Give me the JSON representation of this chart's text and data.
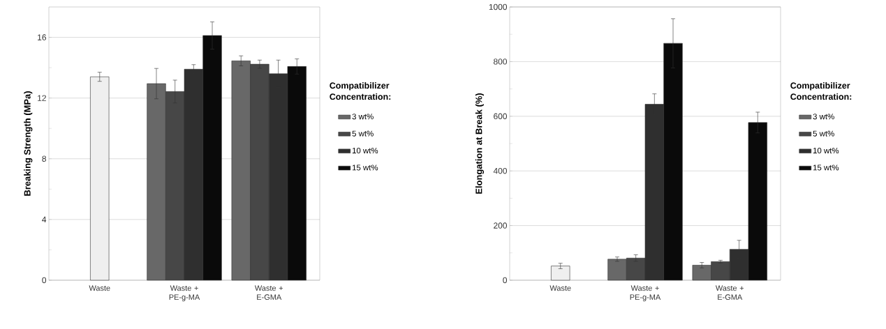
{
  "chart_data": [
    {
      "type": "bar",
      "ylabel": "Breaking Strength (MPa)",
      "legend_title": "Compatibilizer Concentration:",
      "categories": [
        "Waste",
        "Waste + PE-g-MA",
        "Waste + E-GMA"
      ],
      "series": [
        {
          "color": "#efefef",
          "values": [
            13.4,
            null,
            null
          ],
          "errors": [
            0.3,
            null,
            null
          ]
        },
        {
          "name": "3 wt%",
          "color": "#686868",
          "values": [
            null,
            12.95,
            14.45
          ],
          "errors": [
            null,
            1.0,
            0.33
          ]
        },
        {
          "name": "5 wt%",
          "color": "#474747",
          "values": [
            null,
            12.43,
            14.23
          ],
          "errors": [
            null,
            0.75,
            0.27
          ]
        },
        {
          "name": "10 wt%",
          "color": "#2f2f2f",
          "values": [
            null,
            13.9,
            13.6
          ],
          "errors": [
            null,
            0.3,
            0.9
          ]
        },
        {
          "name": "15 wt%",
          "color": "#0a0a0a",
          "values": [
            null,
            16.12,
            14.08
          ],
          "errors": [
            null,
            0.9,
            0.5
          ]
        }
      ],
      "ylim": [
        0,
        18
      ],
      "yticks": [
        0,
        {
          "value": 2,
          "label": null
        },
        4,
        {
          "value": 6,
          "label": null
        },
        8,
        {
          "value": 10,
          "label": null
        },
        12,
        {
          "value": 14,
          "label": null
        },
        16
      ],
      "grid": "y",
      "legend": "right"
    },
    {
      "type": "bar",
      "ylabel": "Elongation at Break (%)",
      "legend_title": "Compatibilizer Concentration:",
      "categories": [
        "Waste",
        "Waste + PE-g-MA",
        "Waste + E-GMA"
      ],
      "series": [
        {
          "color": "#efefef",
          "values": [
            52,
            null,
            null
          ],
          "errors": [
            10,
            null,
            null
          ]
        },
        {
          "name": "3 wt%",
          "color": "#686868",
          "values": [
            null,
            77,
            55
          ],
          "errors": [
            null,
            8,
            10
          ]
        },
        {
          "name": "5 wt%",
          "color": "#474747",
          "values": [
            null,
            81,
            68
          ],
          "errors": [
            null,
            12,
            5
          ]
        },
        {
          "name": "10 wt%",
          "color": "#2f2f2f",
          "values": [
            null,
            644,
            113
          ],
          "errors": [
            null,
            38,
            33
          ]
        },
        {
          "name": "15 wt%",
          "color": "#0a0a0a",
          "values": [
            null,
            867,
            577
          ],
          "errors": [
            null,
            90,
            38
          ]
        }
      ],
      "ylim": [
        0,
        1000
      ],
      "yticks": [
        0,
        {
          "value": 100,
          "label": null
        },
        200,
        {
          "value": 300,
          "label": null
        },
        400,
        {
          "value": 500,
          "label": null
        },
        600,
        {
          "value": 700,
          "label": null
        },
        800,
        {
          "value": 900,
          "label": null
        },
        1000
      ],
      "grid": "y",
      "legend": "right"
    }
  ]
}
